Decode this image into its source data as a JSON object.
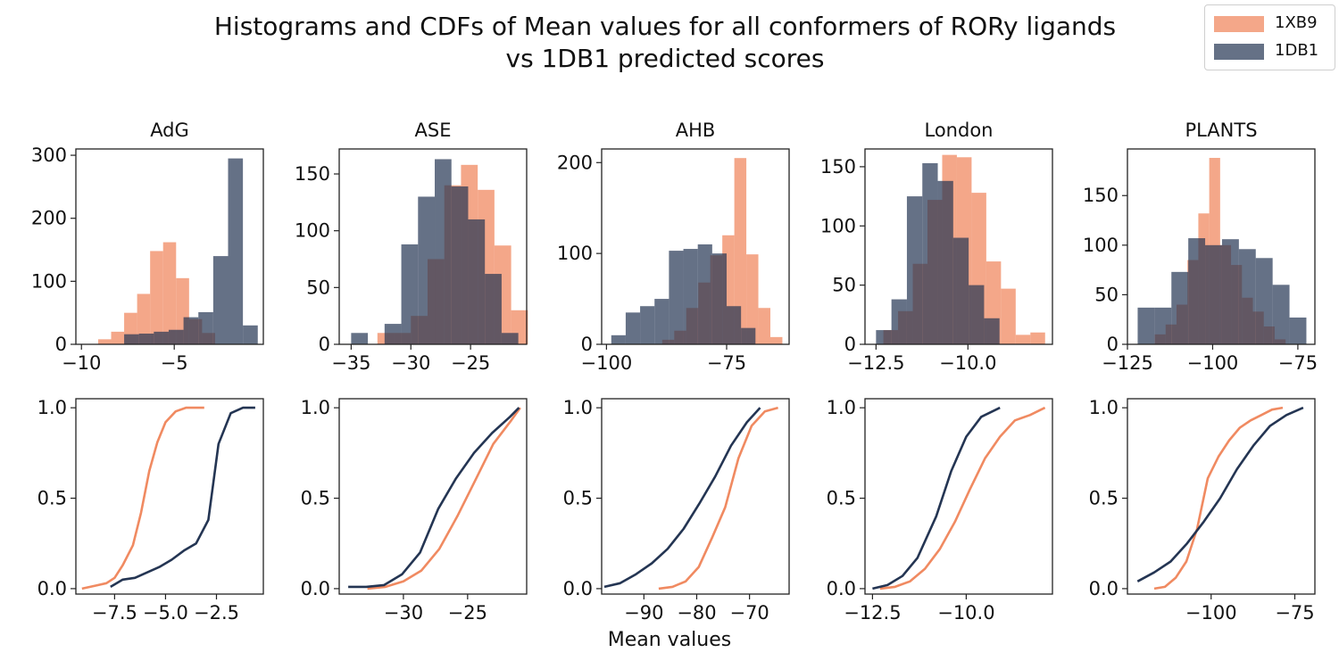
{
  "figure": {
    "title_line1": "Histograms and CDFs of Mean values for all conformers of RORy ligands",
    "title_line2": "vs 1DB1 predicted scores",
    "xlabel": "Mean values"
  },
  "colors": {
    "1XB9": "#f08a61",
    "1DB1": "#243553",
    "overlap": "#5f4d61"
  },
  "legend": [
    {
      "label": "1XB9",
      "color": "#f08a61"
    },
    {
      "label": "1DB1",
      "color": "#243553"
    }
  ],
  "chart_data": [
    {
      "type": "bar",
      "subplot": "histogram",
      "title": "AdG",
      "xlim": [
        -10.3,
        -0.2
      ],
      "ylim": [
        0,
        310
      ],
      "xticks": [
        -10,
        -5
      ],
      "xtick_labels": [
        "−10",
        "−5"
      ],
      "yticks": [
        0,
        100,
        200,
        300
      ],
      "ytick_labels": [
        "0",
        "100",
        "200",
        "300"
      ],
      "series": [
        {
          "name": "1XB9",
          "bin_edges": [
            -9.1,
            -8.4,
            -7.7,
            -7.0,
            -6.3,
            -5.6,
            -4.9,
            -4.2,
            -3.5,
            -2.8
          ],
          "counts": [
            8,
            20,
            50,
            80,
            148,
            162,
            105,
            40,
            18
          ]
        },
        {
          "name": "1DB1",
          "bin_edges": [
            -7.7,
            -6.9,
            -6.1,
            -5.3,
            -4.5,
            -3.7,
            -2.9,
            -2.1,
            -1.3,
            -0.5
          ],
          "counts": [
            16,
            17,
            20,
            23,
            43,
            51,
            140,
            295,
            30
          ]
        }
      ]
    },
    {
      "type": "bar",
      "subplot": "histogram",
      "title": "ASE",
      "xlim": [
        -36,
        -20.3
      ],
      "ylim": [
        0,
        172
      ],
      "xticks": [
        -35,
        -30,
        -25
      ],
      "xtick_labels": [
        "−35",
        "−30",
        "−25"
      ],
      "yticks": [
        0,
        50,
        100,
        150
      ],
      "ytick_labels": [
        "0",
        "50",
        "100",
        "150"
      ],
      "series": [
        {
          "name": "1XB9",
          "bin_edges": [
            -34.2,
            -32.8,
            -31.4,
            -30.0,
            -28.6,
            -27.2,
            -25.8,
            -24.4,
            -23.0,
            -21.6,
            -20.2
          ],
          "counts": [
            0,
            10,
            10,
            25,
            75,
            140,
            158,
            136,
            87,
            30
          ]
        },
        {
          "name": "1DB1",
          "bin_edges": [
            -35.0,
            -33.6,
            -32.2,
            -30.8,
            -29.4,
            -28.0,
            -26.6,
            -25.2,
            -23.8,
            -22.4,
            -21.0
          ],
          "counts": [
            10,
            0,
            18,
            88,
            130,
            163,
            139,
            110,
            62,
            10
          ]
        }
      ]
    },
    {
      "type": "bar",
      "subplot": "histogram",
      "title": "AHB",
      "xlim": [
        -101,
        -62
      ],
      "ylim": [
        0,
        215
      ],
      "xticks": [
        -100,
        -75
      ],
      "xtick_labels": [
        "−100",
        "−75"
      ],
      "yticks": [
        0,
        100,
        200
      ],
      "ytick_labels": [
        "0",
        "100",
        "200"
      ],
      "series": [
        {
          "name": "1XB9",
          "bin_edges": [
            -88.4,
            -85.9,
            -83.4,
            -80.9,
            -78.4,
            -75.9,
            -73.4,
            -70.9,
            -68.4,
            -65.9,
            -63.4
          ],
          "counts": [
            5,
            15,
            40,
            68,
            98,
            120,
            205,
            99,
            40,
            8
          ]
        },
        {
          "name": "1DB1",
          "bin_edges": [
            -99.0,
            -96.0,
            -93.0,
            -90.0,
            -87.0,
            -84.0,
            -81.0,
            -78.0,
            -75.0,
            -72.0,
            -69.0
          ],
          "counts": [
            10,
            35,
            42,
            50,
            103,
            105,
            110,
            100,
            42,
            18
          ]
        }
      ]
    },
    {
      "type": "bar",
      "subplot": "histogram",
      "title": "London",
      "xlim": [
        -12.8,
        -7.7
      ],
      "ylim": [
        0,
        165
      ],
      "xticks": [
        -12.5,
        -10
      ],
      "xtick_labels": [
        "−12.5",
        "−10.0"
      ],
      "yticks": [
        0,
        50,
        100,
        150
      ],
      "ytick_labels": [
        "0",
        "50",
        "100",
        "150"
      ],
      "series": [
        {
          "name": "1XB9",
          "bin_edges": [
            -12.3,
            -11.9,
            -11.5,
            -11.1,
            -10.7,
            -10.3,
            -9.9,
            -9.5,
            -9.1,
            -8.7,
            -8.3,
            -7.9
          ],
          "counts": [
            12,
            28,
            68,
            122,
            160,
            158,
            128,
            70,
            47,
            8,
            10
          ]
        },
        {
          "name": "1DB1",
          "bin_edges": [
            -12.5,
            -12.08,
            -11.66,
            -11.24,
            -10.82,
            -10.4,
            -9.98,
            -9.56,
            -9.14
          ],
          "counts": [
            12,
            38,
            125,
            153,
            138,
            90,
            50,
            22
          ]
        }
      ]
    },
    {
      "type": "bar",
      "subplot": "histogram",
      "title": "PLANTS",
      "xlim": [
        -125,
        -70
      ],
      "ylim": [
        0,
        197
      ],
      "xticks": [
        -125,
        -100,
        -75
      ],
      "xtick_labels": [
        "−125",
        "−100",
        "−75"
      ],
      "yticks": [
        0,
        50,
        100,
        150
      ],
      "ytick_labels": [
        "0",
        "50",
        "100",
        "150"
      ],
      "series": [
        {
          "name": "1XB9",
          "bin_edges": [
            -117.0,
            -113.8,
            -110.6,
            -107.4,
            -104.2,
            -101.0,
            -97.8,
            -94.6,
            -91.4,
            -88.2,
            -85.0,
            -81.8,
            -78.6
          ],
          "counts": [
            10,
            20,
            40,
            85,
            132,
            188,
            100,
            80,
            47,
            33,
            18,
            5
          ]
        },
        {
          "name": "1DB1",
          "bin_edges": [
            -122.0,
            -117.05,
            -112.1,
            -107.15,
            -102.2,
            -97.25,
            -92.3,
            -87.35,
            -82.4,
            -77.45,
            -72.5
          ],
          "counts": [
            37,
            37,
            73,
            107,
            100,
            106,
            96,
            87,
            60,
            27
          ]
        }
      ]
    },
    {
      "type": "line",
      "subplot": "cdf",
      "panel": "AdG",
      "xlim": [
        -9.4,
        -0.2
      ],
      "ylim": [
        -0.03,
        1.05
      ],
      "xticks": [
        -7.5,
        -5.0,
        -2.5
      ],
      "xtick_labels": [
        "−7.5",
        "−5.0",
        "−2.5"
      ],
      "yticks": [
        0,
        0.5,
        1.0
      ],
      "ytick_labels": [
        "0.0",
        "0.5",
        "1.0"
      ],
      "series": [
        {
          "name": "1XB9",
          "x": [
            -9.1,
            -8.7,
            -8.3,
            -7.9,
            -7.5,
            -7.1,
            -6.6,
            -6.2,
            -5.8,
            -5.4,
            -5.0,
            -4.5,
            -4.0,
            -3.6,
            -3.1
          ],
          "y": [
            0.0,
            0.01,
            0.02,
            0.03,
            0.06,
            0.13,
            0.24,
            0.42,
            0.65,
            0.81,
            0.92,
            0.98,
            1.0,
            1.0,
            1.0
          ]
        },
        {
          "name": "1DB1",
          "x": [
            -7.7,
            -7.1,
            -6.5,
            -5.9,
            -5.3,
            -4.7,
            -4.1,
            -3.5,
            -2.9,
            -2.4,
            -1.8,
            -1.2,
            -0.6
          ],
          "y": [
            0.01,
            0.05,
            0.06,
            0.09,
            0.12,
            0.16,
            0.21,
            0.25,
            0.38,
            0.8,
            0.97,
            1.0,
            1.0
          ]
        }
      ]
    },
    {
      "type": "line",
      "subplot": "cdf",
      "panel": "ASE",
      "xlim": [
        -35,
        -20.4
      ],
      "ylim": [
        -0.03,
        1.05
      ],
      "xticks": [
        -30,
        -25
      ],
      "xtick_labels": [
        "−30",
        "−25"
      ],
      "yticks": [
        0,
        0.5,
        1.0
      ],
      "ytick_labels": [
        "0.0",
        "0.5",
        "1.0"
      ],
      "series": [
        {
          "name": "1XB9",
          "x": [
            -32.8,
            -31.4,
            -30.0,
            -28.6,
            -27.2,
            -25.8,
            -24.4,
            -23.0,
            -21.6,
            -20.9
          ],
          "y": [
            0.0,
            0.01,
            0.04,
            0.1,
            0.22,
            0.4,
            0.6,
            0.8,
            0.93,
            1.0
          ]
        },
        {
          "name": "1DB1",
          "x": [
            -34.3,
            -32.9,
            -31.5,
            -30.1,
            -28.7,
            -27.3,
            -25.9,
            -24.5,
            -23.1,
            -21.7,
            -21.0
          ],
          "y": [
            0.01,
            0.01,
            0.02,
            0.08,
            0.2,
            0.44,
            0.61,
            0.75,
            0.86,
            0.95,
            1.0
          ]
        }
      ]
    },
    {
      "type": "line",
      "subplot": "cdf",
      "panel": "AHB",
      "xlim": [
        -98,
        -62.5
      ],
      "ylim": [
        -0.03,
        1.05
      ],
      "xticks": [
        -90,
        -80,
        -70
      ],
      "xtick_labels": [
        "−90",
        "−80",
        "−70"
      ],
      "yticks": [
        0,
        0.5,
        1.0
      ],
      "ytick_labels": [
        "0.0",
        "0.5",
        "1.0"
      ],
      "series": [
        {
          "name": "1XB9",
          "x": [
            -87.2,
            -84.6,
            -82.1,
            -79.6,
            -77.1,
            -74.6,
            -72.1,
            -69.6,
            -67.1,
            -64.6
          ],
          "y": [
            0.0,
            0.01,
            0.04,
            0.12,
            0.28,
            0.45,
            0.72,
            0.9,
            0.98,
            1.0
          ]
        },
        {
          "name": "1DB1",
          "x": [
            -97.5,
            -94.5,
            -91.5,
            -88.5,
            -85.5,
            -82.5,
            -79.5,
            -76.5,
            -73.5,
            -70.5,
            -68.0
          ],
          "y": [
            0.01,
            0.03,
            0.08,
            0.14,
            0.22,
            0.33,
            0.47,
            0.62,
            0.79,
            0.92,
            1.0
          ]
        }
      ]
    },
    {
      "type": "line",
      "subplot": "cdf",
      "panel": "London",
      "xlim": [
        -12.7,
        -7.7
      ],
      "ylim": [
        -0.03,
        1.05
      ],
      "xticks": [
        -12.5,
        -10.0
      ],
      "xtick_labels": [
        "−12.5",
        "−10.0"
      ],
      "yticks": [
        0,
        0.5,
        1.0
      ],
      "ytick_labels": [
        "0.0",
        "0.5",
        "1.0"
      ],
      "series": [
        {
          "name": "1XB9",
          "x": [
            -12.3,
            -11.9,
            -11.5,
            -11.1,
            -10.7,
            -10.3,
            -9.9,
            -9.5,
            -9.1,
            -8.7,
            -8.3,
            -7.9
          ],
          "y": [
            0.0,
            0.01,
            0.04,
            0.11,
            0.22,
            0.37,
            0.55,
            0.72,
            0.84,
            0.93,
            0.96,
            1.0
          ]
        },
        {
          "name": "1DB1",
          "x": [
            -12.5,
            -12.1,
            -11.7,
            -11.3,
            -10.8,
            -10.4,
            -10.0,
            -9.6,
            -9.1
          ],
          "y": [
            0.0,
            0.02,
            0.07,
            0.17,
            0.4,
            0.65,
            0.84,
            0.95,
            1.0
          ]
        }
      ]
    },
    {
      "type": "line",
      "subplot": "cdf",
      "panel": "PLANTS",
      "xlim": [
        -125,
        -69
      ],
      "ylim": [
        -0.03,
        1.05
      ],
      "xticks": [
        -100,
        -75
      ],
      "xtick_labels": [
        "−100",
        "−75"
      ],
      "yticks": [
        0,
        0.5,
        1.0
      ],
      "ytick_labels": [
        "0.0",
        "0.5",
        "1.0"
      ],
      "series": [
        {
          "name": "1XB9",
          "x": [
            -117.0,
            -113.8,
            -110.6,
            -107.4,
            -104.2,
            -101.0,
            -97.8,
            -94.6,
            -91.4,
            -88.2,
            -85.0,
            -81.8,
            -78.6
          ],
          "y": [
            0.0,
            0.01,
            0.06,
            0.15,
            0.33,
            0.61,
            0.73,
            0.82,
            0.89,
            0.93,
            0.96,
            0.99,
            1.0
          ]
        },
        {
          "name": "1DB1",
          "x": [
            -122.0,
            -117.0,
            -112.1,
            -107.2,
            -102.2,
            -97.3,
            -92.3,
            -87.4,
            -82.4,
            -77.5,
            -72.5
          ],
          "y": [
            0.04,
            0.09,
            0.15,
            0.25,
            0.37,
            0.5,
            0.66,
            0.79,
            0.9,
            0.96,
            1.0
          ]
        }
      ]
    }
  ]
}
